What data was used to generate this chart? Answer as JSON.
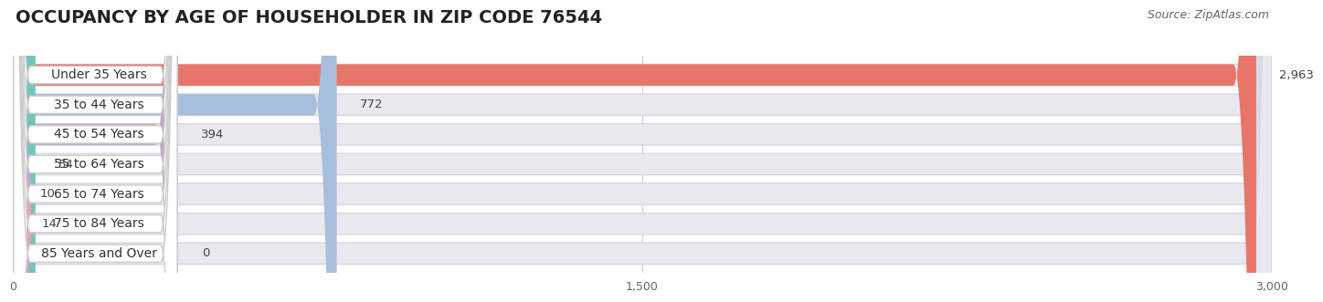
{
  "title": "OCCUPANCY BY AGE OF HOUSEHOLDER IN ZIP CODE 76544",
  "source": "Source: ZipAtlas.com",
  "categories": [
    "Under 35 Years",
    "35 to 44 Years",
    "45 to 54 Years",
    "55 to 64 Years",
    "65 to 74 Years",
    "75 to 84 Years",
    "85 Years and Over"
  ],
  "values": [
    2963,
    772,
    394,
    54,
    10,
    14,
    0
  ],
  "bar_colors": [
    "#e8756a",
    "#a8bedd",
    "#c4a8cc",
    "#72c4bc",
    "#abb0dc",
    "#f0a0b8",
    "#f5c890"
  ],
  "xlim_min": 0,
  "xlim_max": 3000,
  "xticks": [
    0,
    1500,
    3000
  ],
  "xtick_labels": [
    "0",
    "1,500",
    "3,000"
  ],
  "bar_bg_color": "#e8e8ee",
  "bar_bg_outline": "#d8d8e0",
  "title_fontsize": 14,
  "label_fontsize": 10,
  "value_fontsize": 9.5,
  "source_fontsize": 9
}
